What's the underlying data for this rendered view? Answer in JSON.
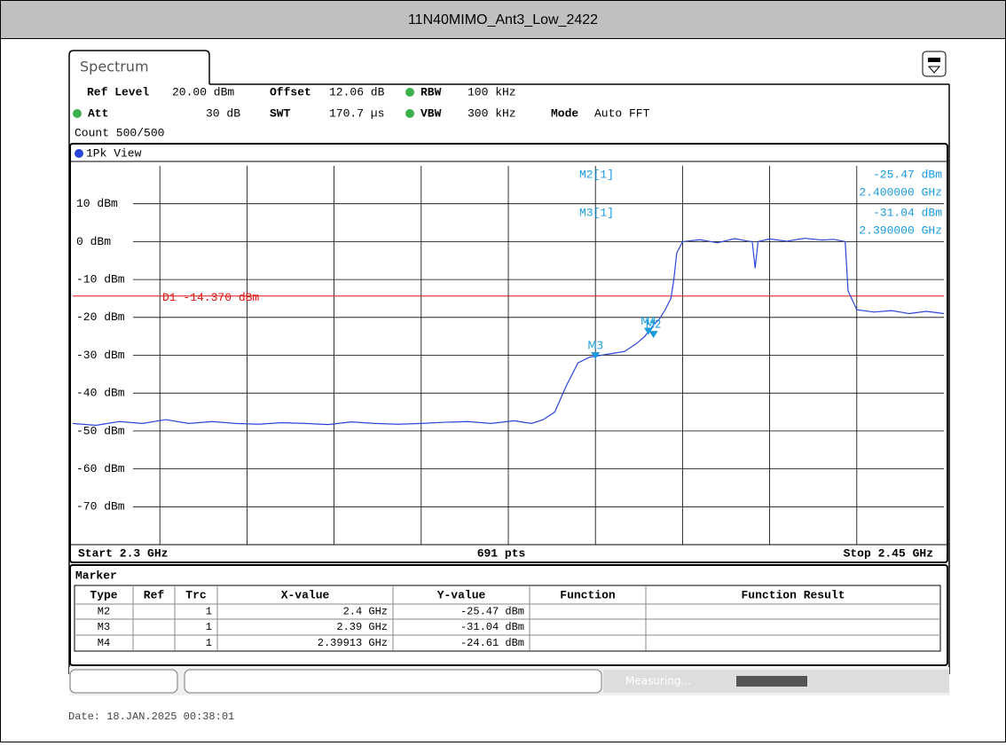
{
  "header": {
    "title": "11N40MIMO_Ant3_Low_2422"
  },
  "tab": "Spectrum",
  "settings": {
    "ref_level_label": "Ref Level",
    "ref_level": "20.00 dBm",
    "offset_label": "Offset",
    "offset": "12.06 dB",
    "rbw_label": "RBW",
    "rbw": "100 kHz",
    "att_label": "Att",
    "att": "30 dB",
    "swt_label": "SWT",
    "swt": "170.7 µs",
    "vbw_label": "VBW",
    "vbw": "300 kHz",
    "mode_label": "Mode",
    "mode": "Auto FFT",
    "count": "Count 500/500"
  },
  "view_label": "1Pk View",
  "marker_info": [
    {
      "name": "M2[1]",
      "level": "-25.47 dBm",
      "freq": "2.400000 GHz"
    },
    {
      "name": "M3[1]",
      "level": "-31.04 dBm",
      "freq": "2.390000 GHz"
    }
  ],
  "chart_data": {
    "type": "line",
    "color": "#2b45d8",
    "x": [
      2.3,
      2.304,
      2.308,
      2.312,
      2.316,
      2.32,
      2.324,
      2.328,
      2.332,
      2.336,
      2.34,
      2.344,
      2.348,
      2.352,
      2.356,
      2.36,
      2.364,
      2.368,
      2.372,
      2.376,
      2.379,
      2.381,
      2.383,
      2.385,
      2.387,
      2.389,
      2.391,
      2.393,
      2.395,
      2.397,
      2.3985,
      2.4,
      2.401,
      2.402,
      2.403,
      2.4035,
      2.404,
      2.405,
      2.408,
      2.411,
      2.414,
      2.416,
      2.417,
      2.4175,
      2.418,
      2.42,
      2.423,
      2.426,
      2.429,
      2.431,
      2.433,
      2.4335,
      2.435,
      2.438,
      2.441,
      2.444,
      2.447,
      2.45
    ],
    "values": [
      -48,
      -48.5,
      -47.5,
      -48,
      -47,
      -48,
      -47.5,
      -48,
      -48.2,
      -47.8,
      -48,
      -48.3,
      -47.6,
      -48,
      -48.2,
      -48,
      -47.7,
      -47.5,
      -48,
      -47.3,
      -48,
      -47,
      -45,
      -38,
      -32,
      -30.5,
      -30,
      -29.5,
      -29,
      -27,
      -25,
      -22,
      -20.5,
      -18,
      -15,
      -10,
      -3,
      0,
      0.5,
      -0.3,
      0.8,
      0.2,
      0,
      -7,
      0,
      0.7,
      0.1,
      0.9,
      0.4,
      0.6,
      0,
      -13,
      -18,
      -18.6,
      -18.2,
      -19,
      -18.4,
      -19
    ],
    "xlim": [
      2.3,
      2.45
    ],
    "ylim": [
      -80,
      20
    ],
    "yticks": [
      {
        "value": 10,
        "label": "10 dBm"
      },
      {
        "value": 0,
        "label": "0 dBm"
      },
      {
        "value": -10,
        "label": "-10 dBm"
      },
      {
        "value": -20,
        "label": "-20 dBm"
      },
      {
        "value": -30,
        "label": "-30 dBm"
      },
      {
        "value": -40,
        "label": "-40 dBm"
      },
      {
        "value": -50,
        "label": "-50 dBm"
      },
      {
        "value": -60,
        "label": "-60 dBm"
      },
      {
        "value": -70,
        "label": "-70 dBm"
      }
    ],
    "threshold": {
      "value": -14.37,
      "label": "D1 -14.370 dBm",
      "color": "#e01010"
    },
    "markers": [
      {
        "name": "M2",
        "x": 2.4,
        "y": -25.47
      },
      {
        "name": "M3",
        "x": 2.39,
        "y": -31.04
      },
      {
        "name": "M4",
        "x": 2.39913,
        "y": -24.61
      }
    ],
    "marker_color": "#1a9be0",
    "start_label": "Start 2.3 GHz",
    "points_label": "691 pts",
    "stop_label": "Stop 2.45 GHz"
  },
  "marker_table": {
    "title": "Marker",
    "columns": [
      "Type",
      "Ref",
      "Trc",
      "X-value",
      "Y-value",
      "Function",
      "Function Result"
    ],
    "rows": [
      [
        "M2",
        "",
        "1",
        "2.4 GHz",
        "-25.47 dBm",
        "",
        ""
      ],
      [
        "M3",
        "",
        "1",
        "2.39 GHz",
        "-31.04 dBm",
        "",
        ""
      ],
      [
        "M4",
        "",
        "1",
        "2.39913 GHz",
        "-24.61 dBm",
        "",
        ""
      ]
    ]
  },
  "status": "Measuring...",
  "date": "Date: 18.JAN.2025  00:38:01"
}
